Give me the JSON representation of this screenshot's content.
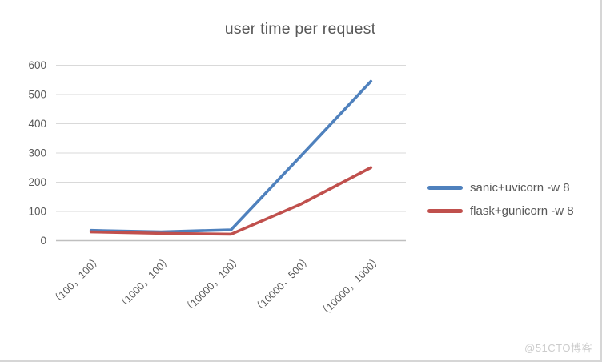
{
  "title": "user time per request",
  "watermark": "@51CTO博客",
  "colors": {
    "series1": "#4F81BD",
    "series2": "#C0504D",
    "gridline": "#D9D9D9",
    "axis_line": "#BFBFBF",
    "text": "#595959",
    "title_text": "#595959",
    "watermark_text": "#CCCCCC",
    "background": "#FFFFFF"
  },
  "chart_data": {
    "type": "line",
    "title": "user time per request",
    "categories": [
      "（100，100）",
      "（1000，100）",
      "（10000，100）",
      "（10000，500）",
      "（10000，1000）"
    ],
    "series": [
      {
        "name": "sanic+uvicorn -w 8",
        "color": "#4F81BD",
        "values": [
          35,
          30,
          37,
          290,
          545
        ]
      },
      {
        "name": "flask+gunicorn -w 8",
        "color": "#C0504D",
        "values": [
          30,
          25,
          22,
          125,
          250
        ]
      }
    ],
    "xlabel": "",
    "ylabel": "",
    "ylim": [
      0,
      600
    ],
    "yticks": [
      0,
      100,
      200,
      300,
      400,
      500,
      600
    ],
    "grid": true,
    "legend_position": "right"
  }
}
